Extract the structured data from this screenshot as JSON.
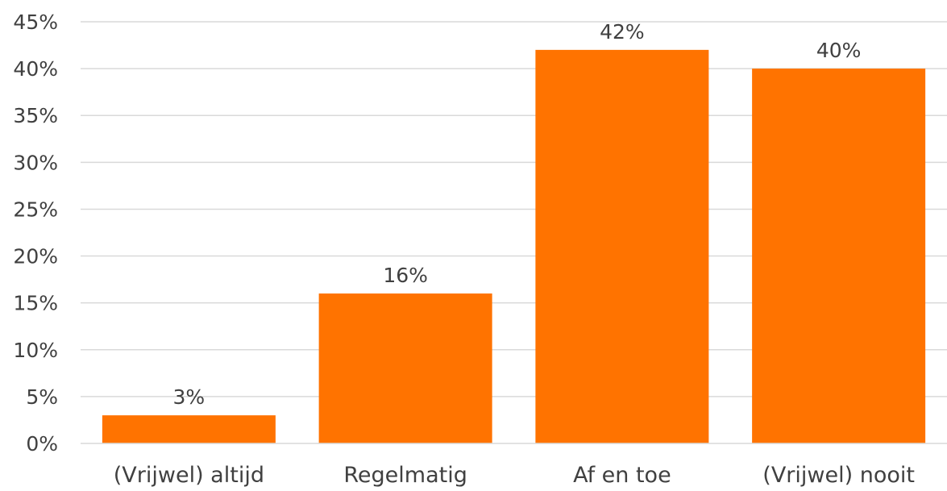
{
  "chart_data": {
    "type": "bar",
    "categories": [
      "(Vrijwel) altijd",
      "Regelmatig",
      "Af en toe",
      "(Vrijwel) nooit"
    ],
    "values": [
      3,
      16,
      42,
      40
    ],
    "data_labels": [
      "3%",
      "16%",
      "42%",
      "40%"
    ],
    "title": "",
    "xlabel": "",
    "ylabel": "",
    "ylim": [
      0,
      45
    ],
    "y_ticks": [
      0,
      5,
      10,
      15,
      20,
      25,
      30,
      35,
      40,
      45
    ],
    "y_tick_labels": [
      "0%",
      "5%",
      "10%",
      "15%",
      "20%",
      "25%",
      "30%",
      "35%",
      "40%",
      "45%"
    ],
    "grid": true,
    "legend": "none",
    "bar_color": "#ff7300",
    "grid_color": "#d9d9d9",
    "text_color": "#404040"
  }
}
